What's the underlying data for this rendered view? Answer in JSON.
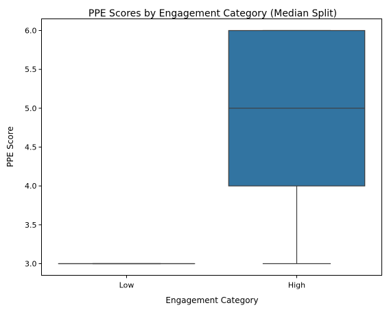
{
  "chart_data": {
    "type": "box",
    "title": "PPE Scores by Engagement Category (Median Split)",
    "xlabel": "Engagement Category",
    "ylabel": "PPE Score",
    "categories": [
      "Low",
      "High"
    ],
    "boxes": [
      {
        "category": "Low",
        "whisker_low": 3.0,
        "q1": 3.0,
        "median": 3.0,
        "q3": 3.0,
        "whisker_high": 3.0
      },
      {
        "category": "High",
        "whisker_low": 3.0,
        "q1": 4.0,
        "median": 5.0,
        "q3": 6.0,
        "whisker_high": 6.0
      }
    ],
    "ylim": [
      2.85,
      6.15
    ],
    "yticks": [
      3.0,
      3.5,
      4.0,
      4.5,
      5.0,
      5.5,
      6.0
    ],
    "ytick_labels": [
      "3.0",
      "3.5",
      "4.0",
      "4.5",
      "5.0",
      "5.5",
      "6.0"
    ],
    "grid": false,
    "colors": {
      "box_fill": "#3274a1",
      "line": "#3d3d3d",
      "axes": "#000000"
    }
  }
}
